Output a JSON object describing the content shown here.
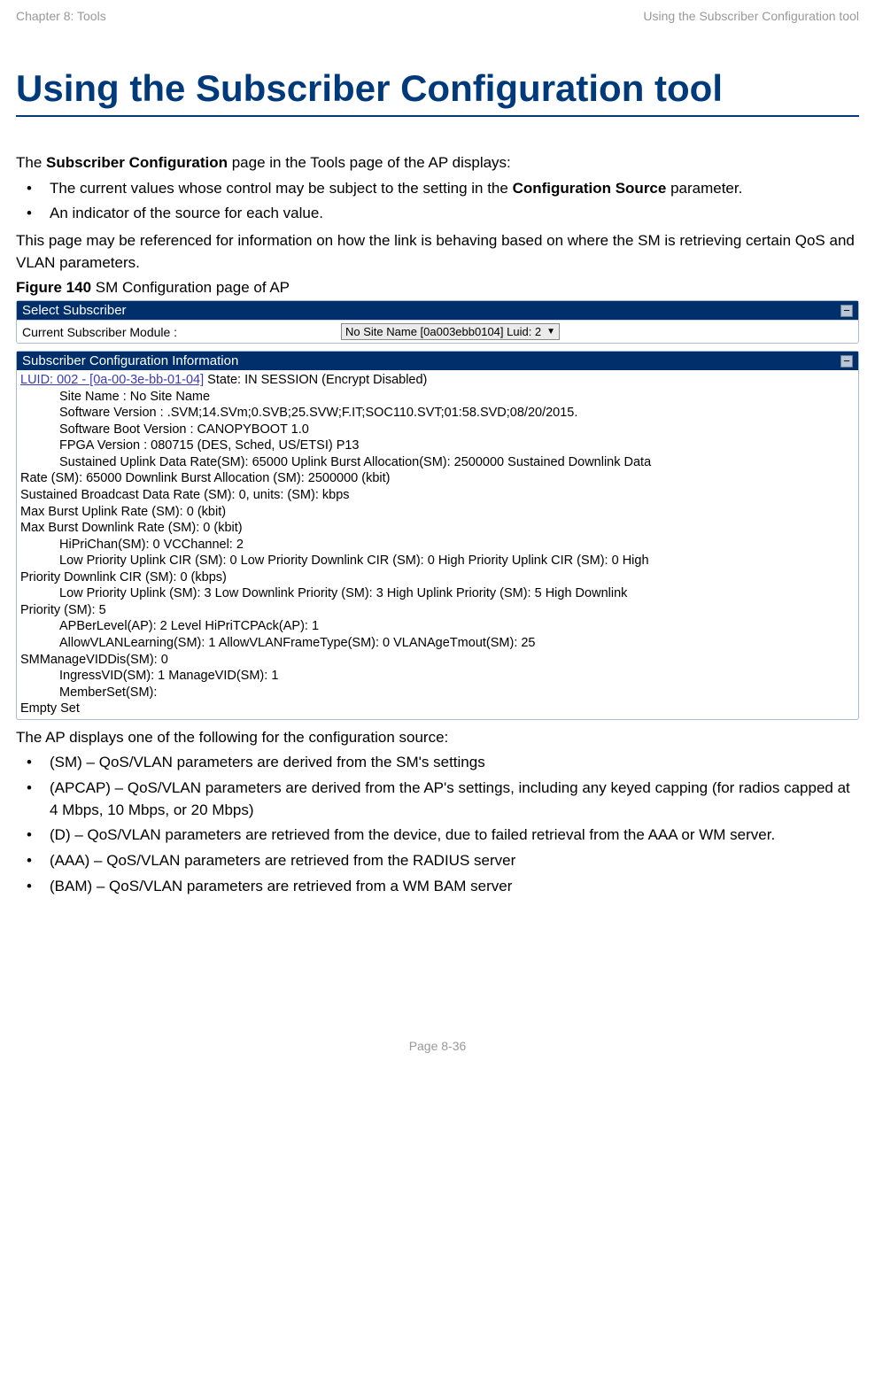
{
  "header": {
    "left": "Chapter 8:  Tools",
    "right": "Using the Subscriber Configuration tool"
  },
  "title": "Using the Subscriber Configuration tool",
  "intro": {
    "line1_pre": "The ",
    "line1_bold": "Subscriber Configuration",
    "line1_post": " page in the Tools page of the AP displays:",
    "bullet1_pre": "The current values whose control may be subject to the setting in the ",
    "bullet1_bold": "Configuration Source",
    "bullet1_post": " parameter.",
    "bullet2": "An indicator of the source for each value.",
    "para2": "This page may be referenced for information on how the link is behaving based on where the SM is retrieving certain QoS and VLAN parameters."
  },
  "figure": {
    "label_bold": "Figure 140",
    "label_rest": " SM Configuration page of AP"
  },
  "panel1": {
    "title": "Select Subscriber",
    "row_label": "Current Subscriber Module :",
    "dropdown_value": "No Site Name [0a003ebb0104] Luid: 2"
  },
  "panel2": {
    "title": "Subscriber Configuration Information",
    "luid_link": "LUID: 002 - [0a-00-3e-bb-01-04]",
    "luid_rest": " State: IN SESSION (Encrypt Disabled)",
    "lines_indent_a": [
      "Site Name : No Site Name",
      "Software Version : .SVM;14.SVm;0.SVB;25.SVW;F.IT;SOC110.SVT;01:58.SVD;08/20/2015.",
      "Software Boot Version : CANOPYBOOT 1.0",
      "FPGA Version : 080715 (DES, Sched, US/ETSI) P13"
    ],
    "wrap1_indent": "Sustained Uplink Data Rate(SM): 65000 Uplink Burst Allocation(SM): 2500000 Sustained Downlink Data",
    "wrap1_noind": "Rate (SM): 65000 Downlink Burst Allocation (SM): 2500000 (kbit)",
    "lines_noind_b": [
      "Sustained Broadcast Data Rate (SM): 0, units: (SM): kbps",
      "Max Burst Uplink Rate (SM): 0 (kbit)",
      "Max Burst Downlink Rate (SM): 0 (kbit)"
    ],
    "line_hipri": "HiPriChan(SM): 0 VCChannel: 2",
    "wrap2_indent": "Low Priority Uplink CIR (SM): 0 Low Priority Downlink CIR (SM): 0 High Priority Uplink CIR (SM): 0 High",
    "wrap2_noind": "Priority Downlink CIR (SM): 0 (kbps)",
    "wrap3_indent": "Low Priority Uplink (SM): 3 Low Downlink Priority (SM): 3 High Uplink Priority (SM): 5 High Downlink",
    "wrap3_noind": "Priority (SM): 5",
    "lines_indent_c": [
      "APBerLevel(AP): 2 Level HiPriTCPAck(AP): 1",
      "AllowVLANLearning(SM): 1 AllowVLANFrameType(SM): 0 VLANAgeTmout(SM): 25"
    ],
    "line_smmanage": "SMManageVIDDis(SM): 0",
    "lines_indent_d": [
      "IngressVID(SM): 1 ManageVID(SM): 1",
      "MemberSet(SM):"
    ],
    "line_empty": "Empty Set"
  },
  "after_figure": {
    "lead": "The AP displays one of the following for the configuration source:",
    "bullets": [
      "(SM) – QoS/VLAN parameters are derived from the SM's settings",
      "(APCAP) – QoS/VLAN parameters are derived from the AP's settings, including any keyed capping (for radios capped at 4 Mbps, 10 Mbps, or 20 Mbps)",
      "(D) – QoS/VLAN parameters are retrieved from the device, due to failed retrieval from the AAA or WM server.",
      "(AAA) – QoS/VLAN parameters are retrieved from the RADIUS server",
      "(BAM) – QoS/VLAN parameters are retrieved from a WM BAM server"
    ]
  },
  "footer": "Page 8-36"
}
